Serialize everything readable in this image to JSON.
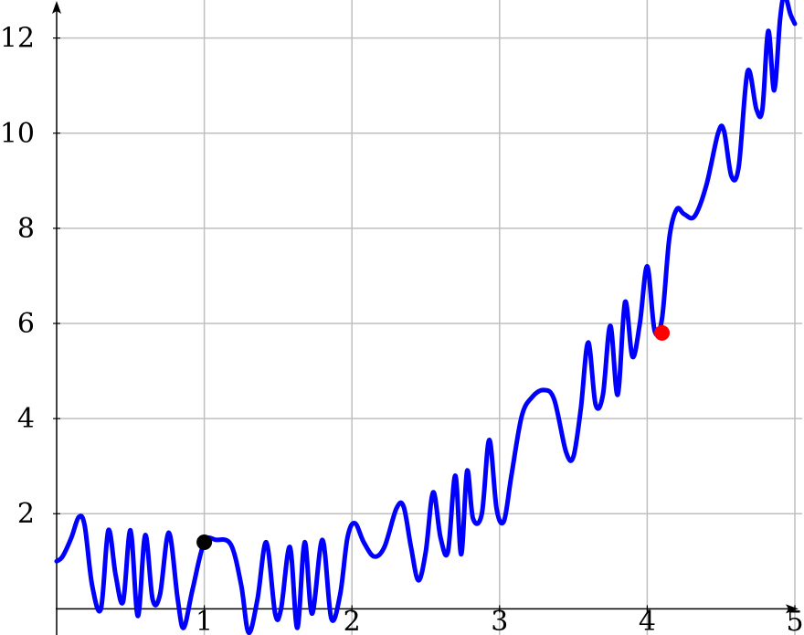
{
  "chart_data": {
    "type": "line",
    "title": "",
    "xlabel": "",
    "ylabel": "",
    "xlim": [
      0,
      5
    ],
    "ylim": [
      -0.55,
      12.8
    ],
    "grid": true,
    "x_ticks": [
      1,
      2,
      3,
      4,
      5
    ],
    "y_ticks": [
      2,
      4,
      6,
      8,
      10,
      12
    ],
    "x_tick_labels": [
      "1",
      "2",
      "3",
      "4",
      "5"
    ],
    "y_tick_labels": [
      "2",
      "4",
      "6",
      "8",
      "10",
      "12"
    ],
    "colors": {
      "line": "#0000ff",
      "marker_black": "#000000",
      "marker_red": "#ff0000",
      "grid": "#bfbfbf",
      "axis": "#000000"
    },
    "series": [
      {
        "points": [
          [
            0,
            1.0
          ],
          [
            0.04,
            1.1
          ],
          [
            0.1,
            1.5
          ],
          [
            0.15,
            1.93
          ],
          [
            0.19,
            1.75
          ],
          [
            0.24,
            0.5
          ],
          [
            0.3,
            0.0
          ],
          [
            0.35,
            1.65
          ],
          [
            0.4,
            0.7
          ],
          [
            0.45,
            0.15
          ],
          [
            0.5,
            1.65
          ],
          [
            0.55,
            -0.15
          ],
          [
            0.6,
            1.55
          ],
          [
            0.65,
            0.2
          ],
          [
            0.7,
            0.3
          ],
          [
            0.76,
            1.6
          ],
          [
            0.82,
            0.2
          ],
          [
            0.86,
            -0.4
          ],
          [
            0.92,
            0.4
          ],
          [
            1.0,
            1.4
          ],
          [
            1.08,
            1.45
          ],
          [
            1.18,
            1.35
          ],
          [
            1.25,
            0.5
          ],
          [
            1.3,
            -0.5
          ],
          [
            1.36,
            0.2
          ],
          [
            1.42,
            1.4
          ],
          [
            1.48,
            -0.1
          ],
          [
            1.52,
            0.0
          ],
          [
            1.58,
            1.3
          ],
          [
            1.63,
            -0.4
          ],
          [
            1.68,
            1.4
          ],
          [
            1.73,
            -0.1
          ],
          [
            1.8,
            1.45
          ],
          [
            1.86,
            -0.2
          ],
          [
            1.92,
            0.3
          ],
          [
            1.97,
            1.5
          ],
          [
            2.02,
            1.8
          ],
          [
            2.08,
            1.4
          ],
          [
            2.15,
            1.1
          ],
          [
            2.22,
            1.3
          ],
          [
            2.3,
            2.1
          ],
          [
            2.35,
            2.15
          ],
          [
            2.4,
            1.3
          ],
          [
            2.45,
            0.6
          ],
          [
            2.5,
            1.2
          ],
          [
            2.55,
            2.45
          ],
          [
            2.6,
            1.5
          ],
          [
            2.65,
            1.2
          ],
          [
            2.7,
            2.8
          ],
          [
            2.74,
            1.15
          ],
          [
            2.78,
            2.9
          ],
          [
            2.82,
            1.9
          ],
          [
            2.88,
            2.0
          ],
          [
            2.93,
            3.55
          ],
          [
            2.98,
            2.1
          ],
          [
            3.03,
            1.85
          ],
          [
            3.08,
            2.8
          ],
          [
            3.15,
            4.05
          ],
          [
            3.22,
            4.45
          ],
          [
            3.3,
            4.6
          ],
          [
            3.37,
            4.4
          ],
          [
            3.45,
            3.3
          ],
          [
            3.5,
            3.2
          ],
          [
            3.55,
            4.2
          ],
          [
            3.6,
            5.6
          ],
          [
            3.65,
            4.3
          ],
          [
            3.7,
            4.5
          ],
          [
            3.75,
            5.95
          ],
          [
            3.8,
            4.5
          ],
          [
            3.85,
            6.45
          ],
          [
            3.9,
            5.3
          ],
          [
            3.95,
            6.0
          ],
          [
            4.0,
            7.2
          ],
          [
            4.05,
            5.85
          ],
          [
            4.1,
            6.1
          ],
          [
            4.15,
            7.8
          ],
          [
            4.2,
            8.4
          ],
          [
            4.25,
            8.3
          ],
          [
            4.32,
            8.25
          ],
          [
            4.4,
            8.9
          ],
          [
            4.48,
            10.0
          ],
          [
            4.52,
            10.05
          ],
          [
            4.57,
            9.1
          ],
          [
            4.62,
            9.3
          ],
          [
            4.68,
            11.3
          ],
          [
            4.74,
            10.5
          ],
          [
            4.78,
            10.5
          ],
          [
            4.82,
            12.15
          ],
          [
            4.86,
            10.9
          ],
          [
            4.9,
            12.4
          ],
          [
            4.93,
            12.9
          ],
          [
            4.97,
            12.5
          ],
          [
            5.0,
            12.3
          ]
        ]
      }
    ],
    "markers": [
      {
        "x": 1.0,
        "y": 1.4,
        "color": "black"
      },
      {
        "x": 4.1,
        "y": 5.8,
        "color": "red"
      }
    ]
  }
}
